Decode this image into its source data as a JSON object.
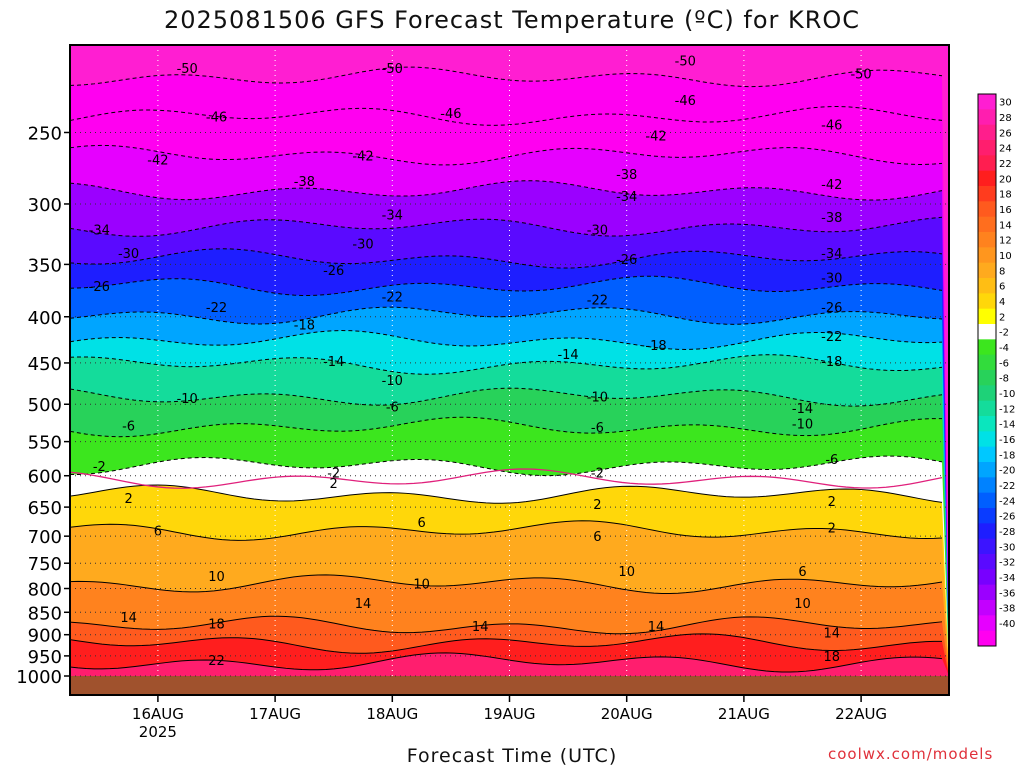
{
  "title": "2025081506 GFS Forecast Temperature (ºC) for KROC",
  "credit": "coolwx.com/models",
  "chart_data": {
    "type": "heatmap",
    "title": "2025081506 GFS Forecast Temperature (ºC) for KROC",
    "xlabel": "Forecast Time (UTC)",
    "ylabel": "",
    "x_range_hours_utc": [
      "2025-08-15T06:00",
      "2025-08-22T18:00"
    ],
    "x_ticks": [
      {
        "label": "16AUG",
        "sublabel": "2025",
        "time": "2025-08-16T00:00"
      },
      {
        "label": "17AUG",
        "sublabel": "",
        "time": "2025-08-17T00:00"
      },
      {
        "label": "18AUG",
        "sublabel": "",
        "time": "2025-08-18T00:00"
      },
      {
        "label": "19AUG",
        "sublabel": "",
        "time": "2025-08-19T00:00"
      },
      {
        "label": "20AUG",
        "sublabel": "",
        "time": "2025-08-20T00:00"
      },
      {
        "label": "21AUG",
        "sublabel": "",
        "time": "2025-08-21T00:00"
      },
      {
        "label": "22AUG",
        "sublabel": "",
        "time": "2025-08-22T00:00"
      }
    ],
    "y_axis": "pressure (hPa), log scale, inverted",
    "y_range": [
      1000,
      200
    ],
    "y_ticks": [
      250,
      300,
      350,
      400,
      450,
      500,
      550,
      600,
      650,
      700,
      750,
      800,
      850,
      900,
      950,
      1000
    ],
    "colorbar_labels": [
      30,
      28,
      26,
      24,
      22,
      20,
      18,
      16,
      14,
      12,
      10,
      8,
      6,
      4,
      2,
      -2,
      -4,
      -6,
      -8,
      -10,
      -12,
      -14,
      -16,
      -18,
      -20,
      -22,
      -24,
      -26,
      -28,
      -30,
      -32,
      -34,
      -36,
      -38,
      -40
    ],
    "colorbar_colors": [
      "#ff1ed2",
      "#ff1eaf",
      "#ff1e8c",
      "#ff1e6e",
      "#ff1e50",
      "#ff1e1e",
      "#ff3c1e",
      "#ff5a1e",
      "#ff6e1e",
      "#ff821e",
      "#ff961e",
      "#ffaa1e",
      "#ffbe14",
      "#ffd70a",
      "#ffff00",
      "#ffffff",
      "#3ce61e",
      "#32dc3c",
      "#28d25a",
      "#1ed278",
      "#14dc9b",
      "#0ae6be",
      "#00e1e6",
      "#00c8ff",
      "#00a5ff",
      "#0082ff",
      "#005fff",
      "#0a3cff",
      "#1e1eff",
      "#3c14ff",
      "#5a0aff",
      "#7800ff",
      "#9b00ff",
      "#c300ff",
      "#e600ff",
      "#ff00f0"
    ],
    "contour_interval_c": 4,
    "grid": true,
    "ground_color": "#a0522d",
    "contour_lines_mean": [
      {
        "label": "-50",
        "p": 217
      },
      {
        "label": "-46",
        "p": 240
      },
      {
        "label": "-42",
        "p": 265
      },
      {
        "label": "-38",
        "p": 290
      },
      {
        "label": "-34",
        "p": 318
      },
      {
        "label": "-30",
        "p": 345
      },
      {
        "label": "-26",
        "p": 370
      },
      {
        "label": "-22",
        "p": 398
      },
      {
        "label": "-18",
        "p": 425
      },
      {
        "label": "-14",
        "p": 452
      },
      {
        "label": "-10",
        "p": 490
      },
      {
        "label": "-6",
        "p": 530
      },
      {
        "label": "-2",
        "p": 585
      },
      {
        "label": "2",
        "p": 630
      },
      {
        "label": "6",
        "p": 690
      },
      {
        "label": "10",
        "p": 790
      },
      {
        "label": "14",
        "p": 880
      },
      {
        "label": "18",
        "p": 920
      },
      {
        "label": "22",
        "p": 965
      }
    ],
    "contour_labels": [
      {
        "text": "-50",
        "time": "2025-08-16T06:00",
        "p": 212
      },
      {
        "text": "-50",
        "time": "2025-08-18T00:00",
        "p": 212
      },
      {
        "text": "-50",
        "time": "2025-08-20T12:00",
        "p": 208
      },
      {
        "text": "-50",
        "time": "2025-08-22T00:00",
        "p": 215
      },
      {
        "text": "-46",
        "time": "2025-08-16T12:00",
        "p": 240
      },
      {
        "text": "-46",
        "time": "2025-08-18M12:00",
        "p": 238
      },
      {
        "text": "-46",
        "time": "2025-08-20T12:00",
        "p": 230
      },
      {
        "text": "-46",
        "time": "2025-08-21T18:00",
        "p": 245
      },
      {
        "text": "-42",
        "time": "2025-08-16T00:00",
        "p": 268
      },
      {
        "text": "-42",
        "time": "2025-08-17T18:00",
        "p": 265
      },
      {
        "text": "-42",
        "time": "2025-08-20T06:00",
        "p": 252
      },
      {
        "text": "-42",
        "time": "2025-08-21T18:00",
        "p": 285
      },
      {
        "text": "-38",
        "time": "2025-08-17T06:00",
        "p": 283
      },
      {
        "text": "-38",
        "time": "2025-08-20T00:00",
        "p": 278
      },
      {
        "text": "-38",
        "time": "2025-08-21T18:00",
        "p": 310
      },
      {
        "text": "-34",
        "time": "2025-08-15T12:00",
        "p": 320
      },
      {
        "text": "-34",
        "time": "2025-08-18T00:00",
        "p": 308
      },
      {
        "text": "-34",
        "time": "2025-08-20T00:00",
        "p": 294
      },
      {
        "text": "-34",
        "time": "2025-08-21T18:00",
        "p": 340
      },
      {
        "text": "-30",
        "time": "2025-08-15T18:00",
        "p": 340
      },
      {
        "text": "-30",
        "time": "2025-08-17T18:00",
        "p": 332
      },
      {
        "text": "-30",
        "time": "2025-08-19T18:00",
        "p": 320
      },
      {
        "text": "-30",
        "time": "2025-08-21T18:00",
        "p": 362
      },
      {
        "text": "-26",
        "time": "2025-08-15T12:00",
        "p": 370
      },
      {
        "text": "-26",
        "time": "2025-08-17T12:00",
        "p": 355
      },
      {
        "text": "-26",
        "time": "2025-08-20T00:00",
        "p": 345
      },
      {
        "text": "-26",
        "time": "2025-08-21T18:00",
        "p": 390
      },
      {
        "text": "-22",
        "time": "2025-08-16T12:00",
        "p": 390
      },
      {
        "text": "-22",
        "time": "2025-08-18T00:00",
        "p": 380
      },
      {
        "text": "-22",
        "time": "2025-08-19T18:00",
        "p": 383
      },
      {
        "text": "-22",
        "time": "2025-08-21T18:00",
        "p": 420
      },
      {
        "text": "-18",
        "time": "2025-08-17T06:00",
        "p": 408
      },
      {
        "text": "-18",
        "time": "2025-08-20T06:00",
        "p": 430
      },
      {
        "text": "-18",
        "time": "2025-08-21T18:00",
        "p": 448
      },
      {
        "text": "-14",
        "time": "2025-08-17T12:00",
        "p": 448
      },
      {
        "text": "-14",
        "time": "2025-08-19T12:00",
        "p": 440
      },
      {
        "text": "-14",
        "time": "2025-08-21T12:00",
        "p": 505
      },
      {
        "text": "-10",
        "time": "2025-08-16T06:00",
        "p": 492
      },
      {
        "text": "-10",
        "time": "2025-08-18T00:00",
        "p": 470
      },
      {
        "text": "-10",
        "time": "2025-08-19T18:00",
        "p": 490
      },
      {
        "text": "-10",
        "time": "2025-08-21T12:00",
        "p": 525
      },
      {
        "text": "-6",
        "time": "2025-08-15T18:00",
        "p": 528
      },
      {
        "text": "-6",
        "time": "2025-08-18T00:00",
        "p": 503
      },
      {
        "text": "-6",
        "time": "2025-08-19T18:00",
        "p": 530
      },
      {
        "text": "-6",
        "time": "2025-08-21T18:00",
        "p": 575
      },
      {
        "text": "-2",
        "time": "2025-08-15T12:00",
        "p": 585
      },
      {
        "text": "-2",
        "time": "2025-08-17T12:00",
        "p": 595
      },
      {
        "text": "-2",
        "time": "2025-08-19T18:00",
        "p": 595
      },
      {
        "text": "2",
        "time": "2025-08-15T18:00",
        "p": 635
      },
      {
        "text": "2",
        "time": "2025-08-17T12:00",
        "p": 611
      },
      {
        "text": "2",
        "time": "2025-08-19T18:00",
        "p": 645
      },
      {
        "text": "2",
        "time": "2025-08-21T18:00",
        "p": 640
      },
      {
        "text": "2",
        "time": "2025-08-21T18:00",
        "p": 685
      },
      {
        "text": "6",
        "time": "2025-08-16T00:00",
        "p": 690
      },
      {
        "text": "6",
        "time": "2025-08-18T06:00",
        "p": 675
      },
      {
        "text": "6",
        "time": "2025-08-19T18:00",
        "p": 700
      },
      {
        "text": "6",
        "time": "2025-08-21T12:00",
        "p": 765
      },
      {
        "text": "10",
        "time": "2025-08-16T12:00",
        "p": 775
      },
      {
        "text": "10",
        "time": "2025-08-18T06:00",
        "p": 790
      },
      {
        "text": "10",
        "time": "2025-08-20T00:00",
        "p": 765
      },
      {
        "text": "10",
        "time": "2025-08-21T12:00",
        "p": 830
      },
      {
        "text": "14",
        "time": "2025-08-15T18:00",
        "p": 860
      },
      {
        "text": "14",
        "time": "2025-08-17T18:00",
        "p": 830
      },
      {
        "text": "14",
        "time": "2025-08-18T18:00",
        "p": 880
      },
      {
        "text": "14",
        "time": "2025-08-20T06:00",
        "p": 880
      },
      {
        "text": "14",
        "time": "2025-08-21T18:00",
        "p": 895
      },
      {
        "text": "18",
        "time": "2025-08-16T12:00",
        "p": 875
      },
      {
        "text": "18",
        "time": "2025-08-21T18:00",
        "p": 950
      },
      {
        "text": "22",
        "time": "2025-08-16T12:00",
        "p": 960
      }
    ]
  }
}
